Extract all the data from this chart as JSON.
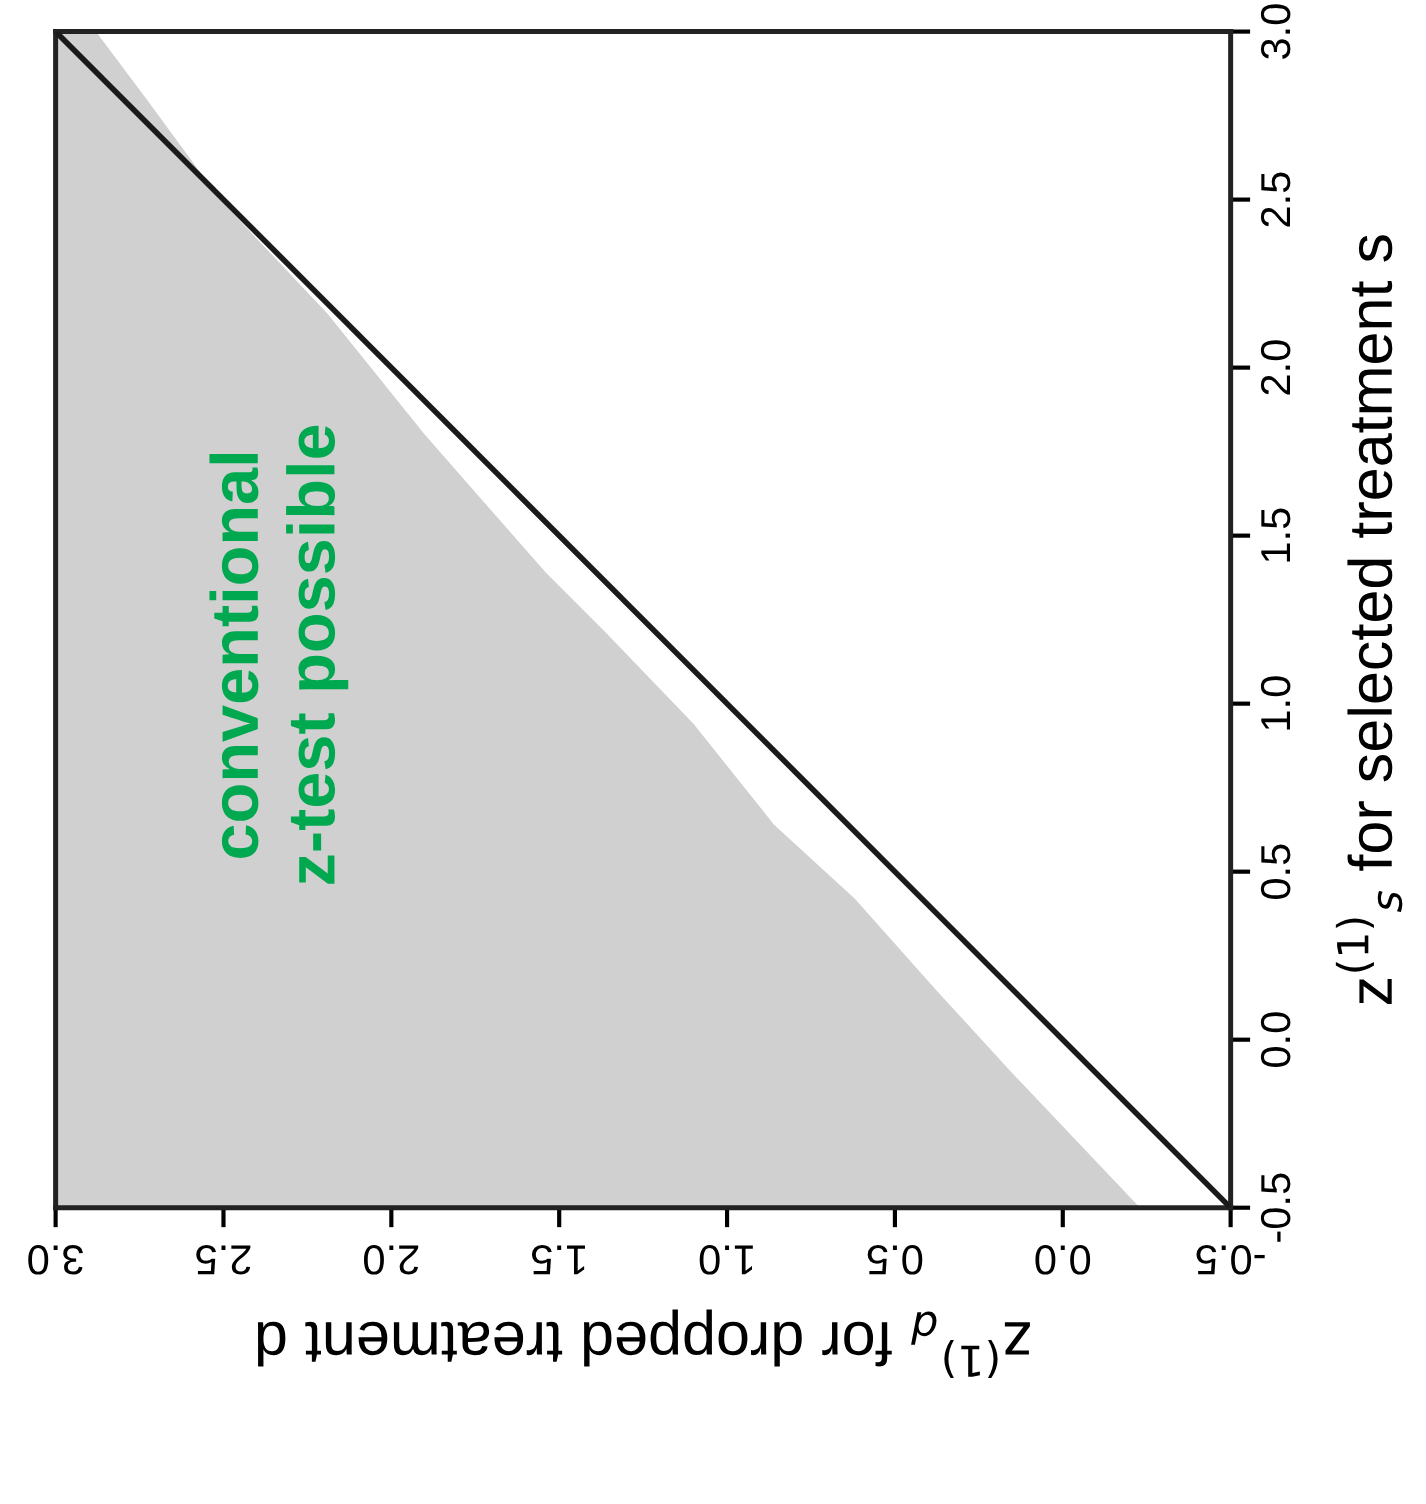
{
  "chart_data": {
    "type": "area",
    "xlabel": "z$^{(1)}$$_{d}$ for dropped treatment d",
    "ylabel": "z$^{(1)}$$_{s}$ for selected treatment s",
    "annotations": [
      "conventional\nz-test possible"
    ],
    "xlim": [
      3.0,
      -0.5
    ],
    "ylim": [
      -0.5,
      3.0
    ],
    "xticks": [
      {
        "value": 3,
        "label": "3.0"
      },
      2.5,
      {
        "value": 2,
        "label": "2.0"
      },
      1.5,
      {
        "value": 1,
        "label": "1.0"
      },
      0.5,
      {
        "value": 0,
        "label": "0.0"
      },
      -0.5
    ],
    "yticks": [
      -0.5,
      {
        "value": 0,
        "label": "0.0"
      },
      0.5,
      {
        "value": 1,
        "label": "1.0"
      },
      1.5,
      {
        "value": 2,
        "label": "2.0"
      },
      2.5,
      {
        "value": 3,
        "label": "3.0"
      }
    ],
    "grid": false,
    "legend": false,
    "series": [
      {
        "type": "area",
        "color": "#d0d0d0",
        "x": [
          3.0,
          2.88,
          2.73,
          2.51,
          2.19,
          1.9,
          1.54,
          1.36,
          1.1,
          0.86,
          0.62,
          0.37,
          0.15,
          -0.23
        ],
        "values": [
          3.0,
          3.0,
          2.8,
          2.5,
          2.16,
          1.8,
          1.39,
          1.21,
          0.94,
          0.64,
          0.42,
          0.14,
          -0.1,
          -0.5
        ]
      },
      {
        "type": "line",
        "color": "#1a1a1a",
        "x": [
          -0.5,
          3.0
        ],
        "values": [
          -0.5,
          3.0
        ]
      }
    ]
  }
}
